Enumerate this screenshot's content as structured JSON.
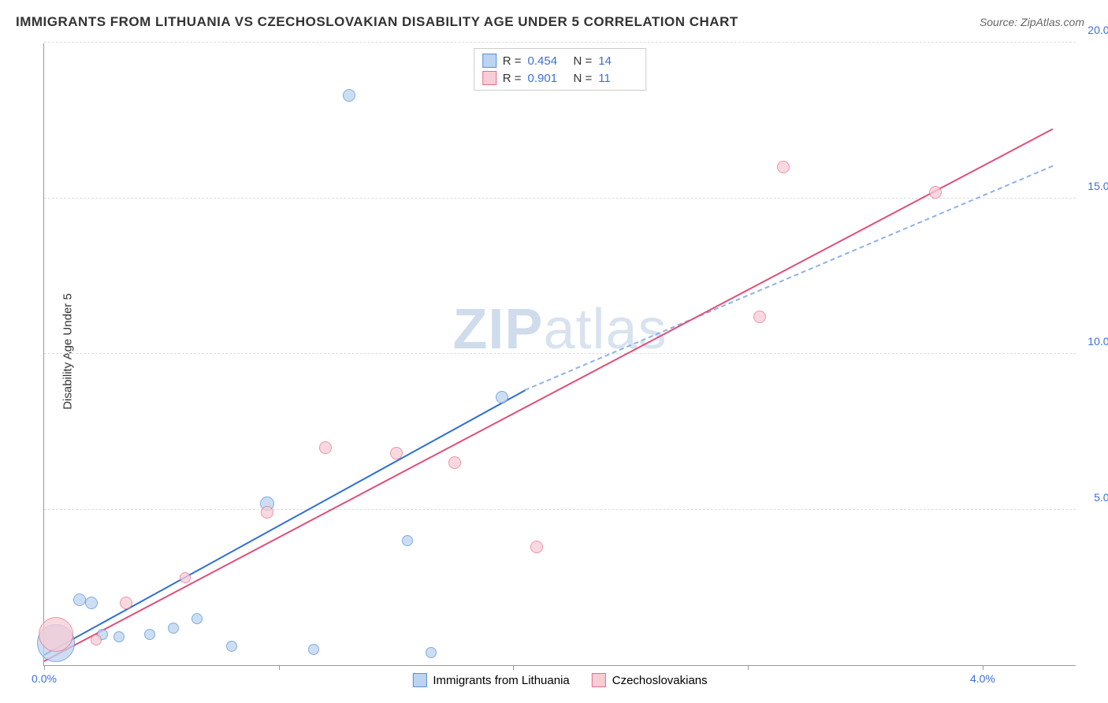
{
  "title": "IMMIGRANTS FROM LITHUANIA VS CZECHOSLOVAKIAN DISABILITY AGE UNDER 5 CORRELATION CHART",
  "source": "Source: ZipAtlas.com",
  "watermark": {
    "zip": "ZIP",
    "atlas": "atlas"
  },
  "chart": {
    "type": "scatter",
    "ylabel": "Disability Age Under 5",
    "xlim": [
      0,
      4.4
    ],
    "ylim": [
      0,
      20
    ],
    "xticks": [
      0,
      1,
      2,
      3,
      4
    ],
    "xtick_labels": [
      "0.0%",
      "",
      "",
      "",
      "4.0%"
    ],
    "yticks": [
      5,
      10,
      15,
      20
    ],
    "ytick_labels": [
      "5.0%",
      "10.0%",
      "15.0%",
      "20.0%"
    ],
    "grid_color": "#dddddd",
    "background_color": "#ffffff",
    "axis_color": "#999999",
    "tick_label_color": "#3b6fd6",
    "series": [
      {
        "name": "Immigrants from Lithuania",
        "fill": "#bcd4f0",
        "stroke": "#5890d8",
        "R": "0.454",
        "N": "14",
        "trend": {
          "x1": 0.0,
          "y1": 0.3,
          "x2": 2.05,
          "y2": 8.8,
          "solid_color": "#2f6fd6",
          "dashed_to_x": 4.3,
          "dashed_to_y": 16.0,
          "dash_color": "#8fb2e8"
        },
        "points": [
          {
            "x": 0.05,
            "y": 0.7,
            "r": 24
          },
          {
            "x": 0.15,
            "y": 2.1,
            "r": 8
          },
          {
            "x": 0.2,
            "y": 2.0,
            "r": 8
          },
          {
            "x": 0.25,
            "y": 1.0,
            "r": 7
          },
          {
            "x": 0.32,
            "y": 0.9,
            "r": 7
          },
          {
            "x": 0.45,
            "y": 1.0,
            "r": 7
          },
          {
            "x": 0.55,
            "y": 1.2,
            "r": 7
          },
          {
            "x": 0.65,
            "y": 1.5,
            "r": 7
          },
          {
            "x": 0.8,
            "y": 0.6,
            "r": 7
          },
          {
            "x": 0.95,
            "y": 5.2,
            "r": 9
          },
          {
            "x": 1.15,
            "y": 0.5,
            "r": 7
          },
          {
            "x": 1.3,
            "y": 18.3,
            "r": 8
          },
          {
            "x": 1.55,
            "y": 4.0,
            "r": 7
          },
          {
            "x": 1.65,
            "y": 0.4,
            "r": 7
          },
          {
            "x": 1.95,
            "y": 8.6,
            "r": 8
          }
        ]
      },
      {
        "name": "Czechoslovakians",
        "fill": "#f7cdd6",
        "stroke": "#e76f8e",
        "R": "0.901",
        "N": "11",
        "trend": {
          "x1": 0.0,
          "y1": 0.1,
          "x2": 4.3,
          "y2": 17.2,
          "solid_color": "#e04e78"
        },
        "points": [
          {
            "x": 0.05,
            "y": 1.0,
            "r": 22
          },
          {
            "x": 0.22,
            "y": 0.8,
            "r": 7
          },
          {
            "x": 0.35,
            "y": 2.0,
            "r": 8
          },
          {
            "x": 0.6,
            "y": 2.8,
            "r": 7
          },
          {
            "x": 0.95,
            "y": 4.9,
            "r": 8
          },
          {
            "x": 1.2,
            "y": 7.0,
            "r": 8
          },
          {
            "x": 1.5,
            "y": 6.8,
            "r": 8
          },
          {
            "x": 1.75,
            "y": 6.5,
            "r": 8
          },
          {
            "x": 2.1,
            "y": 3.8,
            "r": 8
          },
          {
            "x": 3.05,
            "y": 11.2,
            "r": 8
          },
          {
            "x": 3.15,
            "y": 16.0,
            "r": 8
          },
          {
            "x": 3.8,
            "y": 15.2,
            "r": 8
          }
        ]
      }
    ],
    "legend_top": {
      "R_label": "R =",
      "N_label": "N ="
    },
    "legend_bottom": [
      {
        "label": "Immigrants from Lithuania",
        "fill": "#bcd4f0",
        "stroke": "#5890d8"
      },
      {
        "label": "Czechoslovakians",
        "fill": "#f7cdd6",
        "stroke": "#e76f8e"
      }
    ]
  }
}
